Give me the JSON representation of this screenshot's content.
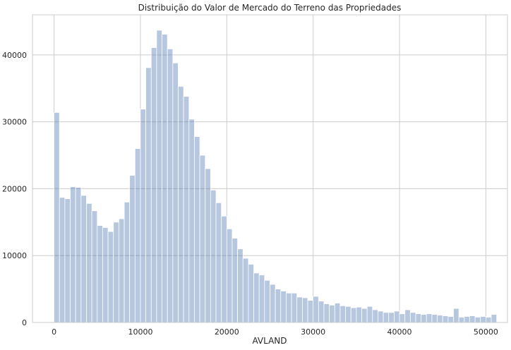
{
  "chart_data": {
    "type": "bar",
    "title": "Distribuição do Valor de Mercado do Terreno das Propriedades",
    "xlabel": "AVLAND",
    "ylabel": "",
    "bin_width": 625,
    "bin_start": 0,
    "xlim": [
      -2500,
      52500
    ],
    "ylim": [
      0,
      46000
    ],
    "x_ticks": [
      0,
      10000,
      20000,
      30000,
      40000,
      50000
    ],
    "y_ticks": [
      0,
      10000,
      20000,
      30000,
      40000
    ],
    "grid": true,
    "bar_color": "#4c72b0",
    "bar_opacity": 0.4,
    "values": [
      31400,
      18700,
      18500,
      20300,
      20200,
      19000,
      17800,
      16700,
      14500,
      14200,
      13600,
      15000,
      15500,
      18000,
      22000,
      26000,
      31900,
      38100,
      41100,
      43700,
      43100,
      40900,
      38800,
      35300,
      33800,
      30400,
      27800,
      25000,
      23000,
      19800,
      17900,
      15900,
      14000,
      12600,
      11000,
      9600,
      8700,
      7400,
      7100,
      6300,
      5700,
      5000,
      4700,
      4400,
      4400,
      3800,
      3700,
      3300,
      3900,
      3200,
      2800,
      2600,
      2900,
      2500,
      2400,
      2200,
      2300,
      2100,
      2400,
      1900,
      1700,
      1500,
      1500,
      1700,
      1300,
      1900,
      1500,
      1300,
      1200,
      1300,
      1200,
      1100,
      1000,
      900,
      2100,
      800,
      900,
      1000,
      800,
      900,
      800,
      1200
    ]
  }
}
